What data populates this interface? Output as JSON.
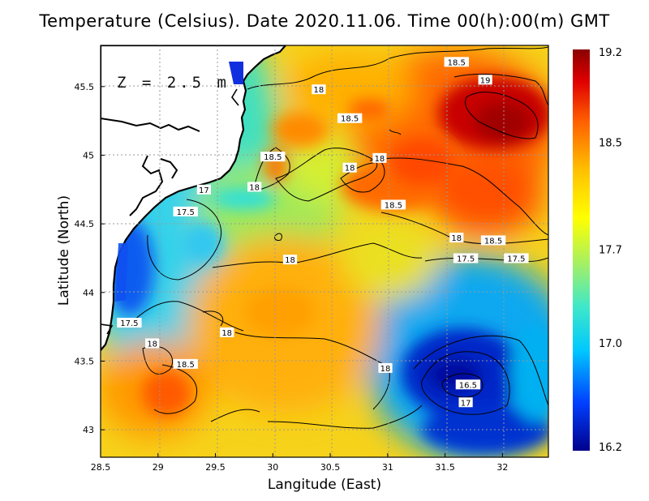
{
  "title": "Temperature (Celsius). Date 2020.11.06. Time 00(h):00(m) GMT",
  "depth_label": "Z = 2.5 m",
  "x_axis": {
    "label": "Langitude (East)",
    "ticks": [
      "28.5",
      "29",
      "29.5",
      "30",
      "30.5",
      "31",
      "31.5",
      "32"
    ],
    "range": [
      28.5,
      32.4
    ]
  },
  "y_axis": {
    "label": "Latitude (North)",
    "ticks": [
      "43",
      "43.5",
      "44",
      "44.5",
      "45",
      "45.5"
    ],
    "range": [
      42.8,
      45.8
    ]
  },
  "colorbar": {
    "ticks": [
      "16.2",
      "17.0",
      "17.7",
      "18.5",
      "19.2"
    ],
    "range": [
      16.2,
      19.2
    ],
    "colors": [
      "#00008b",
      "#0040ff",
      "#00c8ff",
      "#40e8c8",
      "#a8f060",
      "#ffff00",
      "#ffc000",
      "#ff6000",
      "#e00000",
      "#8b0000"
    ]
  },
  "contour_labels": [
    {
      "text": "18.5",
      "lon": 31.6,
      "lat": 45.68
    },
    {
      "text": "19",
      "lon": 31.85,
      "lat": 45.55
    },
    {
      "text": "18",
      "lon": 30.4,
      "lat": 45.48
    },
    {
      "text": "18.5",
      "lon": 30.67,
      "lat": 45.27
    },
    {
      "text": "18.5",
      "lon": 30.0,
      "lat": 44.99
    },
    {
      "text": "18",
      "lon": 30.67,
      "lat": 44.91
    },
    {
      "text": "18",
      "lon": 30.93,
      "lat": 44.98
    },
    {
      "text": "18",
      "lon": 29.84,
      "lat": 44.77
    },
    {
      "text": "17",
      "lon": 29.4,
      "lat": 44.75
    },
    {
      "text": "17.5",
      "lon": 29.24,
      "lat": 44.59
    },
    {
      "text": "18.5",
      "lon": 31.05,
      "lat": 44.64
    },
    {
      "text": "18",
      "lon": 31.6,
      "lat": 44.4
    },
    {
      "text": "18.5",
      "lon": 31.92,
      "lat": 44.38
    },
    {
      "text": "17.5",
      "lon": 31.68,
      "lat": 44.25
    },
    {
      "text": "17.5",
      "lon": 32.12,
      "lat": 44.25
    },
    {
      "text": "18",
      "lon": 30.15,
      "lat": 44.24
    },
    {
      "text": "17.5",
      "lon": 28.75,
      "lat": 43.78
    },
    {
      "text": "18",
      "lon": 29.6,
      "lat": 43.71
    },
    {
      "text": "18",
      "lon": 28.95,
      "lat": 43.63
    },
    {
      "text": "18.5",
      "lon": 29.24,
      "lat": 43.48
    },
    {
      "text": "18",
      "lon": 30.98,
      "lat": 43.45
    },
    {
      "text": "16.5",
      "lon": 31.7,
      "lat": 43.33
    },
    {
      "text": "17",
      "lon": 31.68,
      "lat": 43.2
    }
  ]
}
